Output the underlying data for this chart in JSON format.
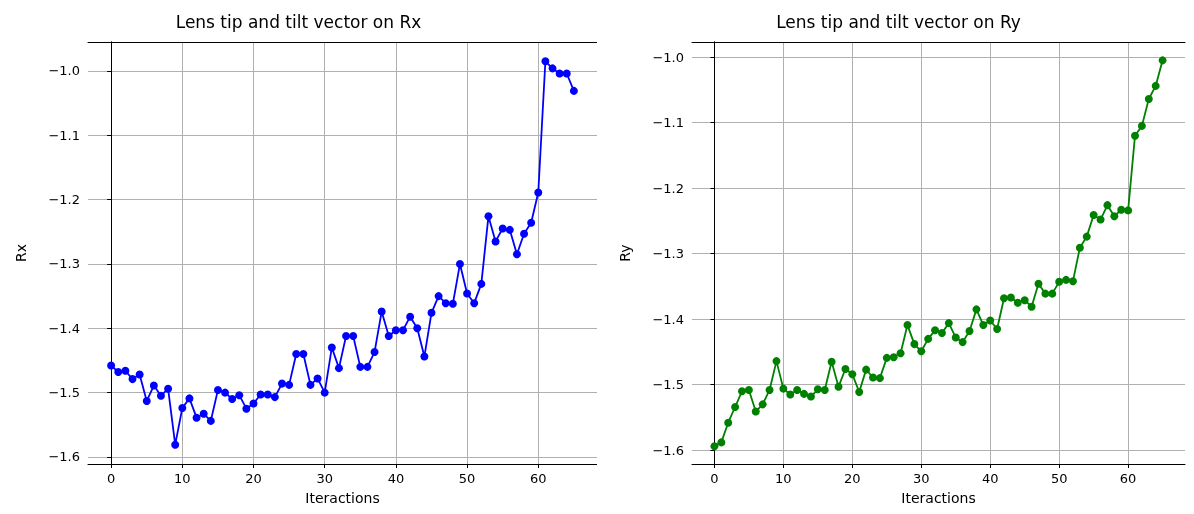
{
  "chart_data": [
    {
      "type": "line",
      "title": "Lens tip and tilt vector on Rx",
      "xlabel": "Iteractions",
      "ylabel": "Rx",
      "grid": true,
      "marker": "circle",
      "line_style": "solid",
      "x": [
        0,
        1,
        2,
        3,
        4,
        5,
        6,
        7,
        8,
        9,
        10,
        11,
        12,
        13,
        14,
        15,
        16,
        17,
        18,
        19,
        20,
        21,
        22,
        23,
        24,
        25,
        26,
        27,
        28,
        29,
        30,
        31,
        32,
        33,
        34,
        35,
        36,
        37,
        38,
        39,
        40,
        41,
        42,
        43,
        44,
        45,
        46,
        47,
        48,
        49,
        50,
        51,
        52,
        53,
        54,
        55,
        56,
        57,
        58,
        59,
        60,
        61,
        62,
        63,
        64,
        65
      ],
      "series": [
        {
          "color": "#0000ff",
          "values": [
            -1.458,
            -1.468,
            -1.466,
            -1.479,
            -1.472,
            -1.513,
            -1.489,
            -1.505,
            -1.494,
            -1.581,
            -1.524,
            -1.509,
            -1.539,
            -1.533,
            -1.544,
            -1.496,
            -1.5,
            -1.51,
            -1.504,
            -1.525,
            -1.517,
            -1.503,
            -1.503,
            -1.507,
            -1.486,
            -1.488,
            -1.44,
            -1.44,
            -1.488,
            -1.478,
            -1.5,
            -1.43,
            -1.462,
            -1.412,
            -1.412,
            -1.46,
            -1.46,
            -1.437,
            -1.374,
            -1.412,
            -1.403,
            -1.403,
            -1.382,
            -1.4,
            -1.444,
            -1.376,
            -1.35,
            -1.361,
            -1.362,
            -1.3,
            -1.346,
            -1.361,
            -1.331,
            -1.226,
            -1.265,
            -1.245,
            -1.247,
            -1.285,
            -1.253,
            -1.236,
            -1.189,
            -0.985,
            -0.996,
            -1.004,
            -1.004,
            -1.031
          ]
        }
      ],
      "xlim": [
        -3.25,
        68.25
      ],
      "xticks": [
        0,
        10,
        20,
        30,
        40,
        50,
        60
      ],
      "ylim": [
        -1.611,
        -0.955
      ],
      "yticks": [
        -1.6,
        -1.5,
        -1.4,
        -1.3,
        -1.2,
        -1.1,
        {
          "value": -1,
          "label": "−1.0"
        }
      ]
    },
    {
      "type": "line",
      "title": "Lens tip and tilt vector on Ry",
      "xlabel": "Iteractions",
      "ylabel": "Ry",
      "grid": true,
      "marker": "circle",
      "line_style": "solid",
      "x": [
        0,
        1,
        2,
        3,
        4,
        5,
        6,
        7,
        8,
        9,
        10,
        11,
        12,
        13,
        14,
        15,
        16,
        17,
        18,
        19,
        20,
        21,
        22,
        23,
        24,
        25,
        26,
        27,
        28,
        29,
        30,
        31,
        32,
        33,
        34,
        35,
        36,
        37,
        38,
        39,
        40,
        41,
        42,
        43,
        44,
        45,
        46,
        47,
        48,
        49,
        50,
        51,
        52,
        53,
        54,
        55,
        56,
        57,
        58,
        59,
        60,
        61,
        62,
        63,
        64,
        65
      ],
      "series": [
        {
          "color": "#008000",
          "values": [
            -1.594,
            -1.588,
            -1.558,
            -1.534,
            -1.51,
            -1.508,
            -1.541,
            -1.53,
            -1.508,
            -1.464,
            -1.506,
            -1.515,
            -1.508,
            -1.514,
            -1.518,
            -1.507,
            -1.508,
            -1.465,
            -1.503,
            -1.476,
            -1.484,
            -1.511,
            -1.477,
            -1.489,
            -1.49,
            -1.459,
            -1.458,
            -1.452,
            -1.409,
            -1.438,
            -1.449,
            -1.43,
            -1.417,
            -1.421,
            -1.406,
            -1.428,
            -1.435,
            -1.418,
            -1.385,
            -1.409,
            -1.402,
            -1.415,
            -1.368,
            -1.367,
            -1.375,
            -1.371,
            -1.381,
            -1.346,
            -1.361,
            -1.361,
            -1.343,
            -1.34,
            -1.342,
            -1.291,
            -1.274,
            -1.241,
            -1.248,
            -1.226,
            -1.243,
            -1.233,
            -1.234,
            -1.12,
            -1.105,
            -1.064,
            -1.044,
            -1.005
          ]
        }
      ],
      "xlim": [
        -3.25,
        68.25
      ],
      "xticks": [
        0,
        10,
        20,
        30,
        40,
        50,
        60
      ],
      "ylim": [
        -1.621,
        -0.977
      ],
      "yticks": [
        -1.6,
        -1.5,
        -1.4,
        -1.3,
        -1.2,
        -1.1,
        {
          "value": -1,
          "label": "−1.0"
        }
      ]
    }
  ]
}
